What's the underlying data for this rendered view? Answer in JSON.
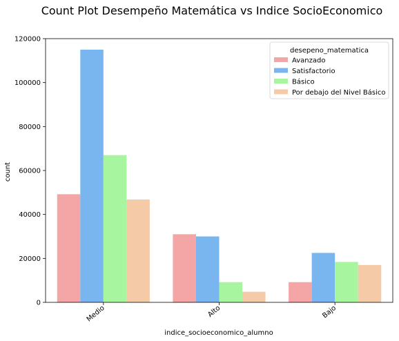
{
  "chart_data": {
    "type": "bar",
    "title": "Count Plot Desempeño Matemática vs Indice SocioEconomico",
    "xlabel": "indice_socioeconomico_alumno",
    "ylabel": "count",
    "categories": [
      "Medio",
      "Alto",
      "Bajo"
    ],
    "ylim": [
      0,
      120000
    ],
    "yticks": [
      0,
      20000,
      40000,
      60000,
      80000,
      100000,
      120000
    ],
    "grid": false,
    "legend": {
      "title": "desepeno_matematica",
      "position": "top-right"
    },
    "series": [
      {
        "name": "Avanzado",
        "color": "#f4a6a6",
        "values": [
          49200,
          31000,
          9200
        ]
      },
      {
        "name": "Satisfactorio",
        "color": "#79b6ef",
        "values": [
          115000,
          30000,
          22500
        ]
      },
      {
        "name": "Básico",
        "color": "#a8f5a0",
        "values": [
          67000,
          9200,
          18400
        ]
      },
      {
        "name": "Por debajo del Nivel Básico",
        "color": "#f5cba7",
        "values": [
          46800,
          4800,
          17000
        ]
      }
    ]
  }
}
